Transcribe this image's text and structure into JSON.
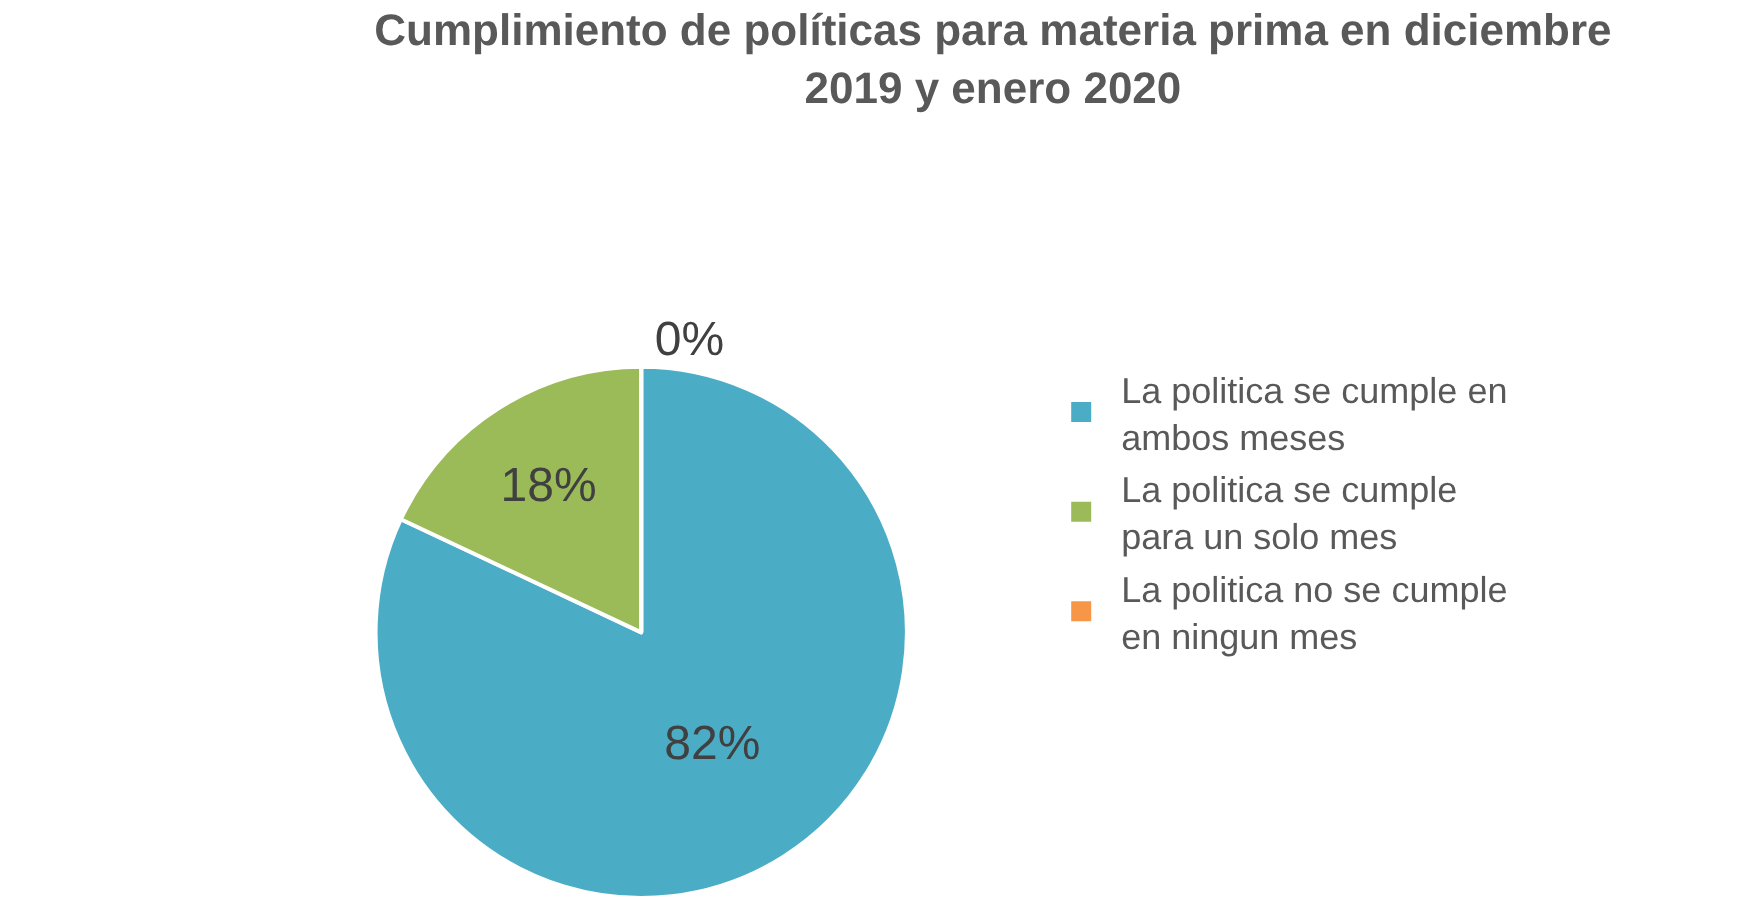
{
  "chart_data": {
    "type": "pie",
    "title": "Cumplimiento de políticas para materia prima en diciembre 2019 y enero 2020",
    "categories": [
      "La politica se cumple en ambos meses",
      "La politica se cumple para un solo mes",
      "La politica no se cumple en ningun mes"
    ],
    "values": [
      82,
      18,
      0
    ],
    "colors": [
      "#4bacc6",
      "#9bbb59",
      "#f79646"
    ],
    "value_labels": [
      "82%",
      "18%",
      "0%"
    ],
    "legend": "right"
  }
}
